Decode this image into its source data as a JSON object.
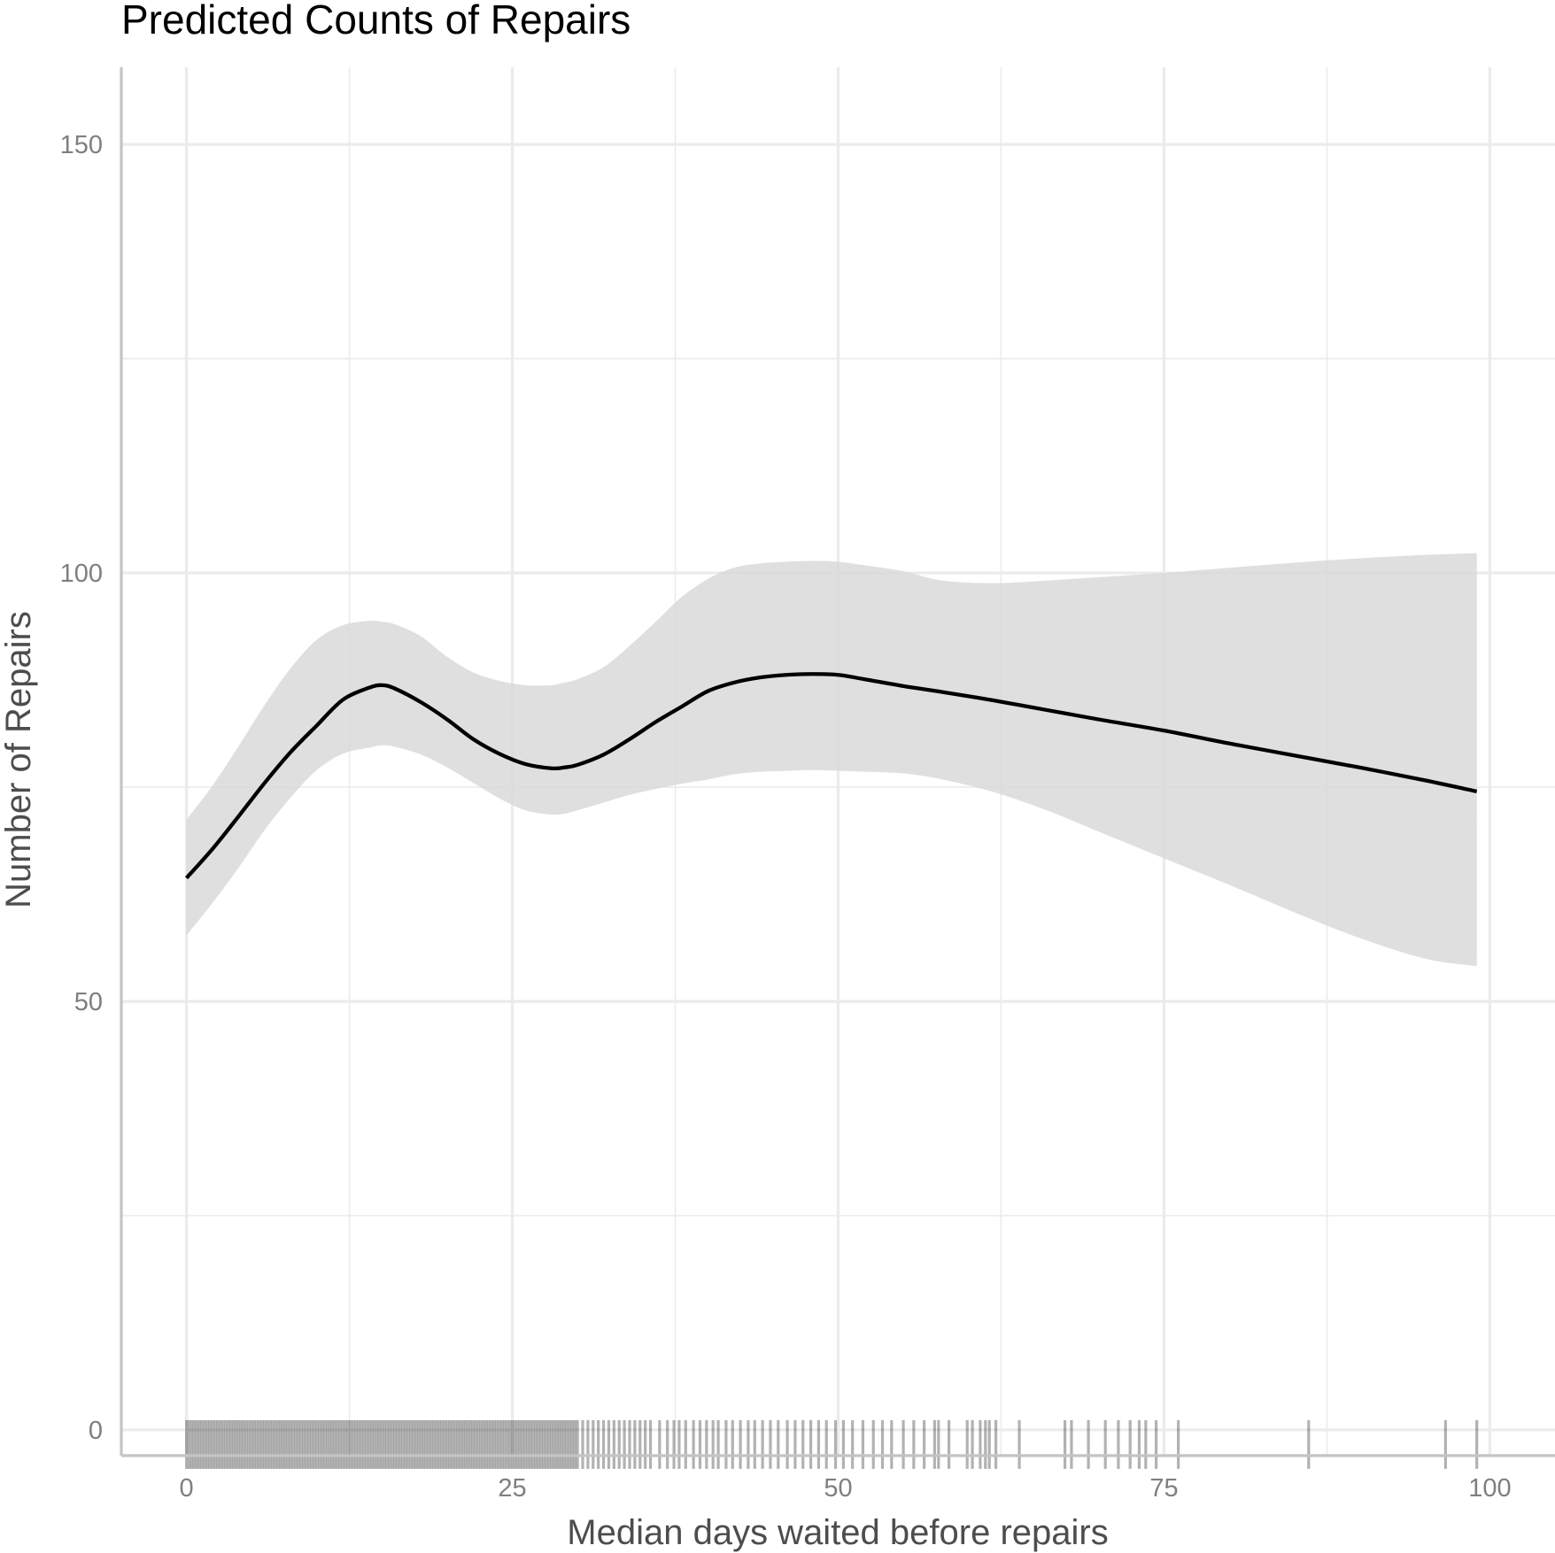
{
  "chart_data": {
    "type": "line",
    "title": "Predicted Counts of Repairs",
    "xlabel": "Median days waited before repairs",
    "ylabel": "Number of Repairs",
    "xlim": [
      -5,
      105
    ],
    "ylim": [
      -3,
      159
    ],
    "x_ticks": [
      0,
      25,
      50,
      75,
      100
    ],
    "y_ticks": [
      0,
      50,
      100,
      150
    ],
    "grid": true,
    "legend": "none",
    "colors": {
      "line": "#000000",
      "ribbon": "#d9d9d9",
      "grid": "#ebebeb",
      "axis": "#c4c4c4",
      "text": "#4d4d4d"
    },
    "series": [
      {
        "x": [
          0,
          2,
          4,
          6,
          8,
          10,
          12,
          14,
          15,
          16,
          18,
          20,
          22,
          24,
          26,
          28,
          29,
          30,
          32,
          34,
          36,
          38,
          40,
          42,
          44,
          46,
          48,
          50,
          52,
          55,
          58,
          62,
          66,
          70,
          75,
          80,
          85,
          90,
          95,
          99
        ],
        "y": [
          64.4,
          67.8,
          71.6,
          75.5,
          79.1,
          82.2,
          85.2,
          86.6,
          86.9,
          86.5,
          84.9,
          82.9,
          80.6,
          78.9,
          77.7,
          77.2,
          77.3,
          77.6,
          78.8,
          80.6,
          82.6,
          84.4,
          86.2,
          87.2,
          87.8,
          88.1,
          88.2,
          88.1,
          87.6,
          86.8,
          86.1,
          85.1,
          84.0,
          82.9,
          81.6,
          80.1,
          78.7,
          77.3,
          75.8,
          74.5
        ],
        "lower": [
          57.7,
          61.5,
          65.6,
          70.0,
          73.8,
          77.0,
          78.9,
          79.6,
          79.9,
          79.7,
          78.8,
          77.3,
          75.5,
          73.7,
          72.3,
          71.8,
          71.9,
          72.3,
          73.2,
          74.1,
          74.8,
          75.4,
          75.9,
          76.5,
          76.8,
          76.9,
          77.0,
          76.9,
          76.8,
          76.6,
          75.9,
          74.4,
          72.3,
          69.8,
          66.7,
          63.6,
          60.4,
          57.4,
          55.0,
          54.1
        ],
        "upper": [
          71.2,
          75.2,
          79.8,
          84.6,
          88.9,
          92.2,
          93.9,
          94.4,
          94.3,
          94.0,
          92.6,
          90.2,
          88.4,
          87.4,
          86.9,
          86.9,
          87.2,
          87.6,
          89.0,
          91.5,
          94.3,
          97.2,
          99.3,
          100.6,
          101.1,
          101.3,
          101.4,
          101.3,
          100.9,
          100.2,
          99.1,
          98.8,
          99.1,
          99.5,
          100.0,
          100.6,
          101.2,
          101.7,
          102.1,
          102.3
        ]
      }
    ],
    "rug": {
      "dense_ranges": [
        [
          0,
          30,
          0.2
        ],
        [
          30,
          36,
          0.4
        ]
      ],
      "x": [
        36.3,
        36.9,
        37.4,
        37.8,
        38.3,
        38.9,
        39.4,
        39.9,
        40.4,
        40.8,
        41.4,
        41.9,
        42.5,
        43.1,
        43.6,
        44.2,
        44.8,
        45.4,
        46.1,
        46.7,
        47.3,
        47.9,
        48.5,
        49.1,
        49.8,
        50.4,
        51.1,
        51.9,
        52.7,
        53.4,
        54.1,
        55.0,
        55.8,
        56.6,
        57.4,
        57.7,
        58.5,
        59.9,
        60.3,
        60.9,
        61.3,
        61.6,
        62.1,
        63.9,
        67.4,
        67.9,
        69.2,
        70.5,
        71.5,
        72.4,
        73.1,
        73.6,
        74.4,
        76.1,
        86.1,
        96.6,
        99.0
      ]
    }
  }
}
